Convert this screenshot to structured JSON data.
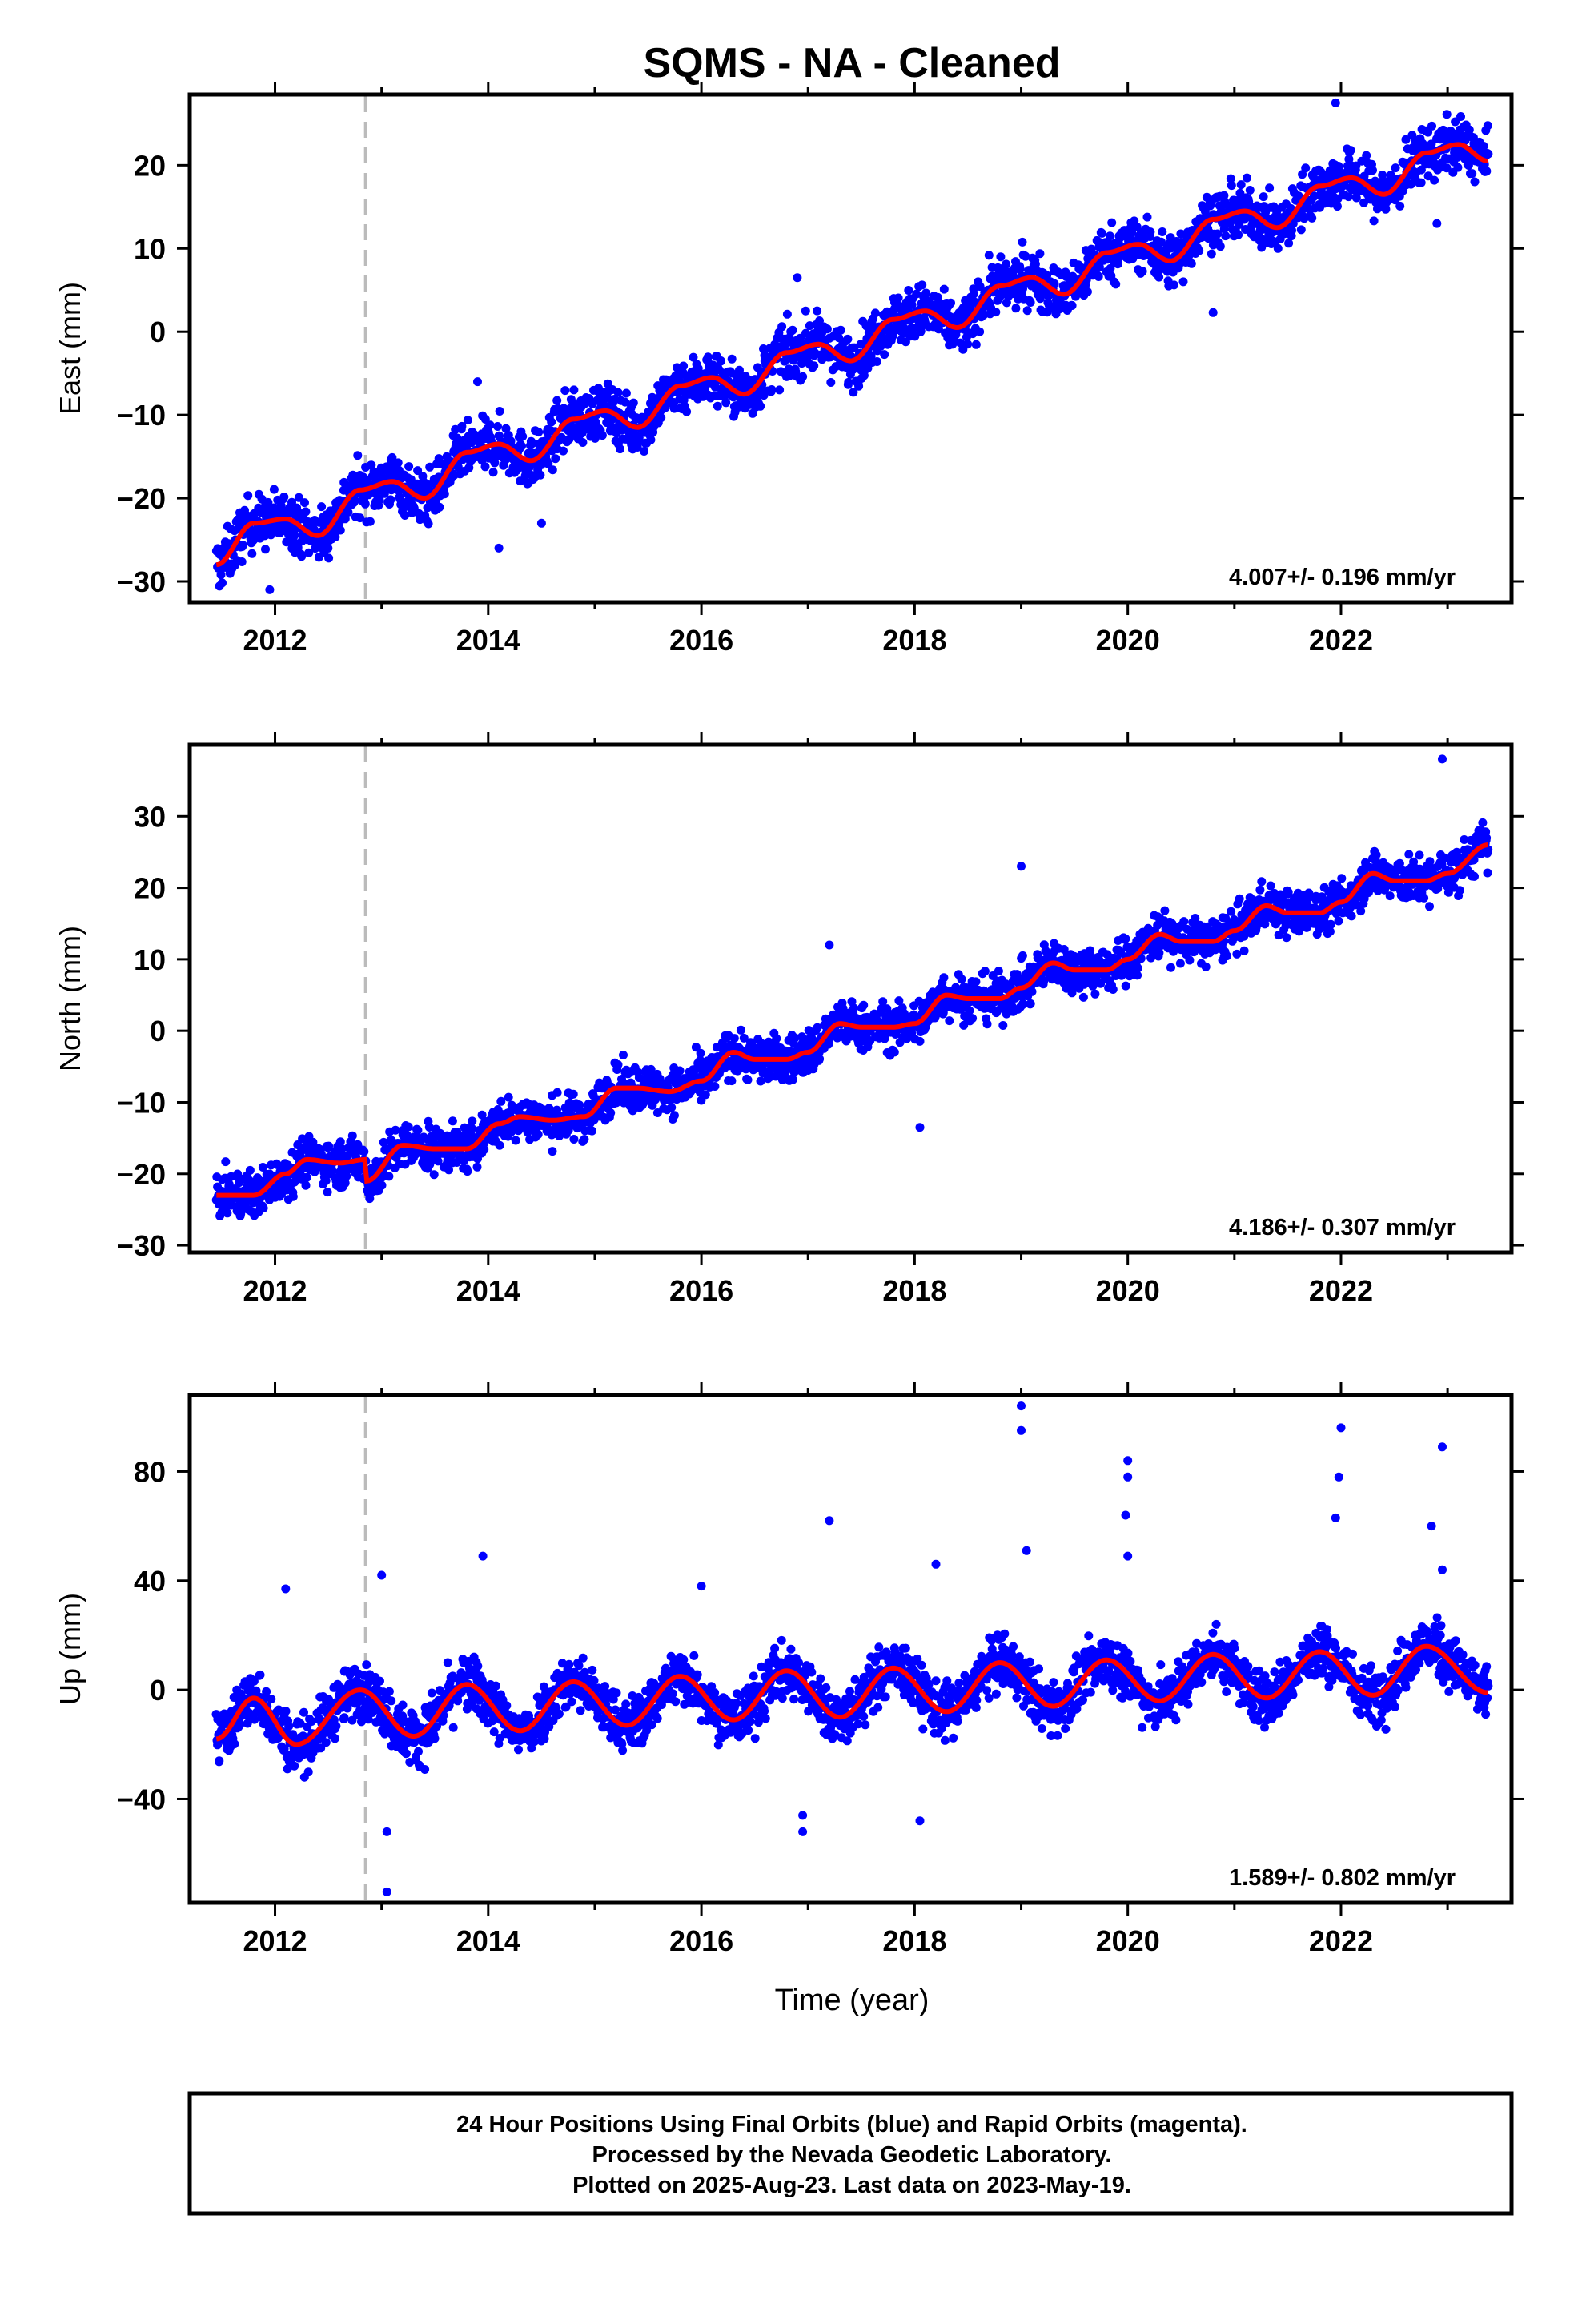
{
  "title": "SQMS  - NA - Cleaned",
  "xlabel": "Time (year)",
  "footer": {
    "line1": "24 Hour Positions Using Final Orbits (blue) and Rapid Orbits (magenta).",
    "line2": "Processed by the Nevada Geodetic Laboratory.",
    "line3": "Plotted on 2025-Aug-23. Last data on 2023-May-19."
  },
  "colors": {
    "points": "#0000ff",
    "fit": "#ff0000",
    "event_line": "#bbbbbb",
    "frame": "#000000"
  },
  "chart_data": [
    {
      "type": "scatter",
      "name": "east",
      "ylabel": "East (mm)",
      "rate_text": "4.007+/- 0.196 mm/yr",
      "xlim": [
        2011.2,
        2023.6
      ],
      "ylim": [
        -32.5,
        28.5
      ],
      "xticks": [
        2012,
        2014,
        2016,
        2018,
        2020,
        2022
      ],
      "yticks": [
        -30,
        -20,
        -10,
        0,
        10,
        20
      ],
      "event_x": 2012.85,
      "series_x_range": [
        2011.45,
        2023.38
      ],
      "fit_x": [
        2011.45,
        2011.8,
        2012.1,
        2012.4,
        2012.8,
        2013.1,
        2013.4,
        2013.8,
        2014.1,
        2014.4,
        2014.8,
        2015.1,
        2015.4,
        2015.8,
        2016.1,
        2016.4,
        2016.8,
        2017.1,
        2017.4,
        2017.8,
        2018.1,
        2018.4,
        2018.8,
        2019.1,
        2019.4,
        2019.8,
        2020.1,
        2020.4,
        2020.8,
        2021.1,
        2021.4,
        2021.8,
        2022.1,
        2022.4,
        2022.8,
        2023.1,
        2023.38
      ],
      "fit_y": [
        -28,
        -23,
        -22.5,
        -24.5,
        -19,
        -18,
        -20,
        -14.5,
        -13.5,
        -15.5,
        -10.5,
        -9.5,
        -11.5,
        -6.5,
        -5.5,
        -7.5,
        -2.5,
        -1.5,
        -3.5,
        1.5,
        2.5,
        0.5,
        5.5,
        6.5,
        4.5,
        9.5,
        10.5,
        8.5,
        13.5,
        14.5,
        12.5,
        17.5,
        18.5,
        16.5,
        21.5,
        22.5,
        20.5
      ],
      "scatter_sigma": 1.6,
      "outliers": [
        [
          2011.95,
          -31
        ],
        [
          2013.9,
          -6
        ],
        [
          2014.5,
          -23
        ],
        [
          2014.1,
          -26
        ],
        [
          2016.9,
          6.5
        ],
        [
          2020.8,
          2.3
        ],
        [
          2021.95,
          27.5
        ],
        [
          2022.9,
          13
        ]
      ]
    },
    {
      "type": "scatter",
      "name": "north",
      "ylabel": "North (mm)",
      "rate_text": "4.186+/- 0.307 mm/yr",
      "xlim": [
        2011.2,
        2023.6
      ],
      "ylim": [
        -31,
        40
      ],
      "xticks": [
        2012,
        2014,
        2016,
        2018,
        2020,
        2022
      ],
      "yticks": [
        -30,
        -20,
        -10,
        0,
        10,
        20,
        30
      ],
      "event_x": 2012.85,
      "series_x_range": [
        2011.45,
        2023.38
      ],
      "fit_x": [
        2011.45,
        2011.8,
        2012.1,
        2012.3,
        2012.6,
        2012.85,
        2012.86,
        2013.2,
        2013.5,
        2013.8,
        2014.1,
        2014.3,
        2014.6,
        2014.9,
        2015.2,
        2015.4,
        2015.7,
        2016.0,
        2016.3,
        2016.5,
        2016.8,
        2017.0,
        2017.3,
        2017.5,
        2017.8,
        2018.0,
        2018.3,
        2018.5,
        2018.8,
        2019.0,
        2019.3,
        2019.5,
        2019.8,
        2020.0,
        2020.3,
        2020.5,
        2020.8,
        2021.0,
        2021.3,
        2021.5,
        2021.8,
        2022.0,
        2022.3,
        2022.5,
        2022.8,
        2023.0,
        2023.38
      ],
      "fit_y": [
        -23,
        -23,
        -20,
        -18,
        -18.5,
        -18,
        -21,
        -16,
        -16.5,
        -16.5,
        -13,
        -12,
        -12.5,
        -12,
        -8,
        -8,
        -8.5,
        -7,
        -3,
        -4,
        -4,
        -3,
        1,
        0.5,
        0.5,
        1,
        5,
        4.5,
        4.5,
        6,
        9.5,
        8.5,
        8.5,
        10,
        13.5,
        12.5,
        12.5,
        14,
        17.5,
        16.5,
        16.5,
        18,
        22,
        21,
        21,
        22,
        26
      ],
      "scatter_sigma": 1.6,
      "outliers": [
        [
          2017.2,
          12
        ],
        [
          2018.05,
          -13.5
        ],
        [
          2019.0,
          23
        ],
        [
          2022.95,
          38
        ]
      ]
    },
    {
      "type": "scatter",
      "name": "up",
      "ylabel": "Up (mm)",
      "rate_text": "1.589+/- 0.802 mm/yr",
      "xlim": [
        2011.2,
        2023.6
      ],
      "ylim": [
        -78,
        108
      ],
      "xticks": [
        2012,
        2014,
        2016,
        2018,
        2020,
        2022
      ],
      "yticks": [
        -40,
        0,
        40,
        80
      ],
      "event_x": 2012.85,
      "series_x_range": [
        2011.45,
        2023.38
      ],
      "fit_x": [
        2011.45,
        2011.8,
        2012.2,
        2012.8,
        2013.3,
        2013.8,
        2014.3,
        2014.8,
        2015.3,
        2015.8,
        2016.3,
        2016.8,
        2017.3,
        2017.8,
        2018.3,
        2018.8,
        2019.3,
        2019.8,
        2020.3,
        2020.8,
        2021.3,
        2021.8,
        2022.3,
        2022.8,
        2023.38
      ],
      "fit_y": [
        -18,
        -3,
        -20,
        0,
        -17,
        2,
        -15,
        3,
        -13,
        5,
        -11,
        7,
        -10,
        8,
        -8,
        10,
        -6,
        11,
        -4,
        13,
        -3,
        14,
        -2,
        16,
        -1
      ],
      "scatter_sigma": 5,
      "outliers": [
        [
          2012.1,
          37
        ],
        [
          2013.0,
          42
        ],
        [
          2013.05,
          -52
        ],
        [
          2013.05,
          -74
        ],
        [
          2013.95,
          49
        ],
        [
          2016.0,
          38
        ],
        [
          2016.95,
          -46
        ],
        [
          2016.95,
          -52
        ],
        [
          2017.2,
          62
        ],
        [
          2018.05,
          -48
        ],
        [
          2018.2,
          46
        ],
        [
          2019.0,
          104
        ],
        [
          2019.0,
          95
        ],
        [
          2019.05,
          51
        ],
        [
          2020.0,
          84
        ],
        [
          2020.0,
          78
        ],
        [
          2019.98,
          64
        ],
        [
          2020.0,
          49
        ],
        [
          2022.0,
          96
        ],
        [
          2021.98,
          78
        ],
        [
          2021.95,
          63
        ],
        [
          2022.95,
          89
        ],
        [
          2022.85,
          60
        ],
        [
          2022.95,
          44
        ]
      ]
    }
  ]
}
